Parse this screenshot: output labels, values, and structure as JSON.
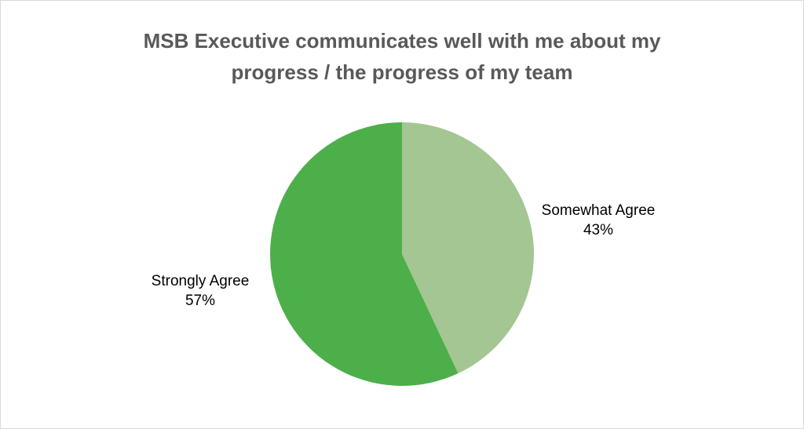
{
  "chart_data": {
    "type": "pie",
    "title": [
      "MSB Executive communicates well with me about my",
      "progress / the progress of my team"
    ],
    "slices": [
      {
        "label": "Somewhat Agree",
        "value": 43,
        "value_label": "43%",
        "color": "#a4c692"
      },
      {
        "label": "Strongly Agree",
        "value": 57,
        "value_label": "57%",
        "color": "#4daf4a"
      }
    ],
    "start": "12 o'clock",
    "direction": "clockwise",
    "legend": "none",
    "data_labels": "outside slices"
  }
}
